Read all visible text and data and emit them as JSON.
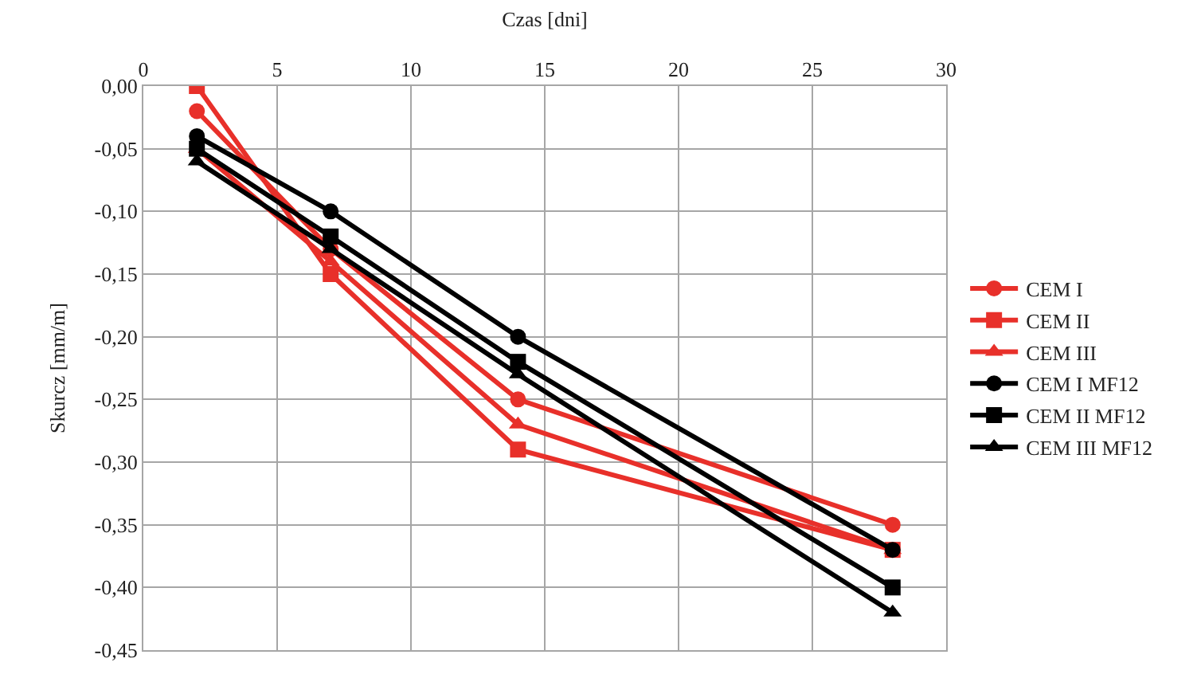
{
  "chart_data": {
    "type": "line",
    "xlabel": "Czas [dni]",
    "ylabel": "Skurcz [mm/m]",
    "x": [
      2,
      7,
      14,
      28
    ],
    "series": [
      {
        "name": "CEM I",
        "color": "#e8302a",
        "marker": "circle",
        "values": [
          -0.02,
          -0.13,
          -0.25,
          -0.35
        ]
      },
      {
        "name": "CEM II",
        "color": "#e8302a",
        "marker": "square",
        "values": [
          0.0,
          -0.15,
          -0.29,
          -0.37
        ]
      },
      {
        "name": "CEM III",
        "color": "#e8302a",
        "marker": "triangle",
        "values": [
          -0.05,
          -0.14,
          -0.27,
          -0.37
        ]
      },
      {
        "name": "CEM I MF12",
        "color": "#000000",
        "marker": "circle",
        "values": [
          -0.04,
          -0.1,
          -0.2,
          -0.37
        ]
      },
      {
        "name": "CEM II MF12",
        "color": "#000000",
        "marker": "square",
        "values": [
          -0.05,
          -0.12,
          -0.22,
          -0.4
        ]
      },
      {
        "name": "CEM III MF12",
        "color": "#000000",
        "marker": "triangle",
        "values": [
          -0.06,
          -0.13,
          -0.23,
          -0.42
        ]
      }
    ],
    "xlim": [
      0,
      30
    ],
    "xticks": [
      0,
      5,
      10,
      15,
      20,
      25,
      30
    ],
    "ylim": [
      -0.45,
      0.0
    ],
    "yticks": [
      {
        "value": 0.0,
        "label": "0,00"
      },
      {
        "value": -0.05,
        "label": "-0,05"
      },
      {
        "value": -0.1,
        "label": "-0,10"
      },
      {
        "value": -0.15,
        "label": "-0,15"
      },
      {
        "value": -0.2,
        "label": "-0,20"
      },
      {
        "value": -0.25,
        "label": "-0,25"
      },
      {
        "value": -0.3,
        "label": "-0,30"
      },
      {
        "value": -0.35,
        "label": "-0,35"
      },
      {
        "value": -0.4,
        "label": "-0,40"
      },
      {
        "value": -0.45,
        "label": "-0,45"
      }
    ],
    "grid": true,
    "legend": "right",
    "line_style": "solid"
  }
}
